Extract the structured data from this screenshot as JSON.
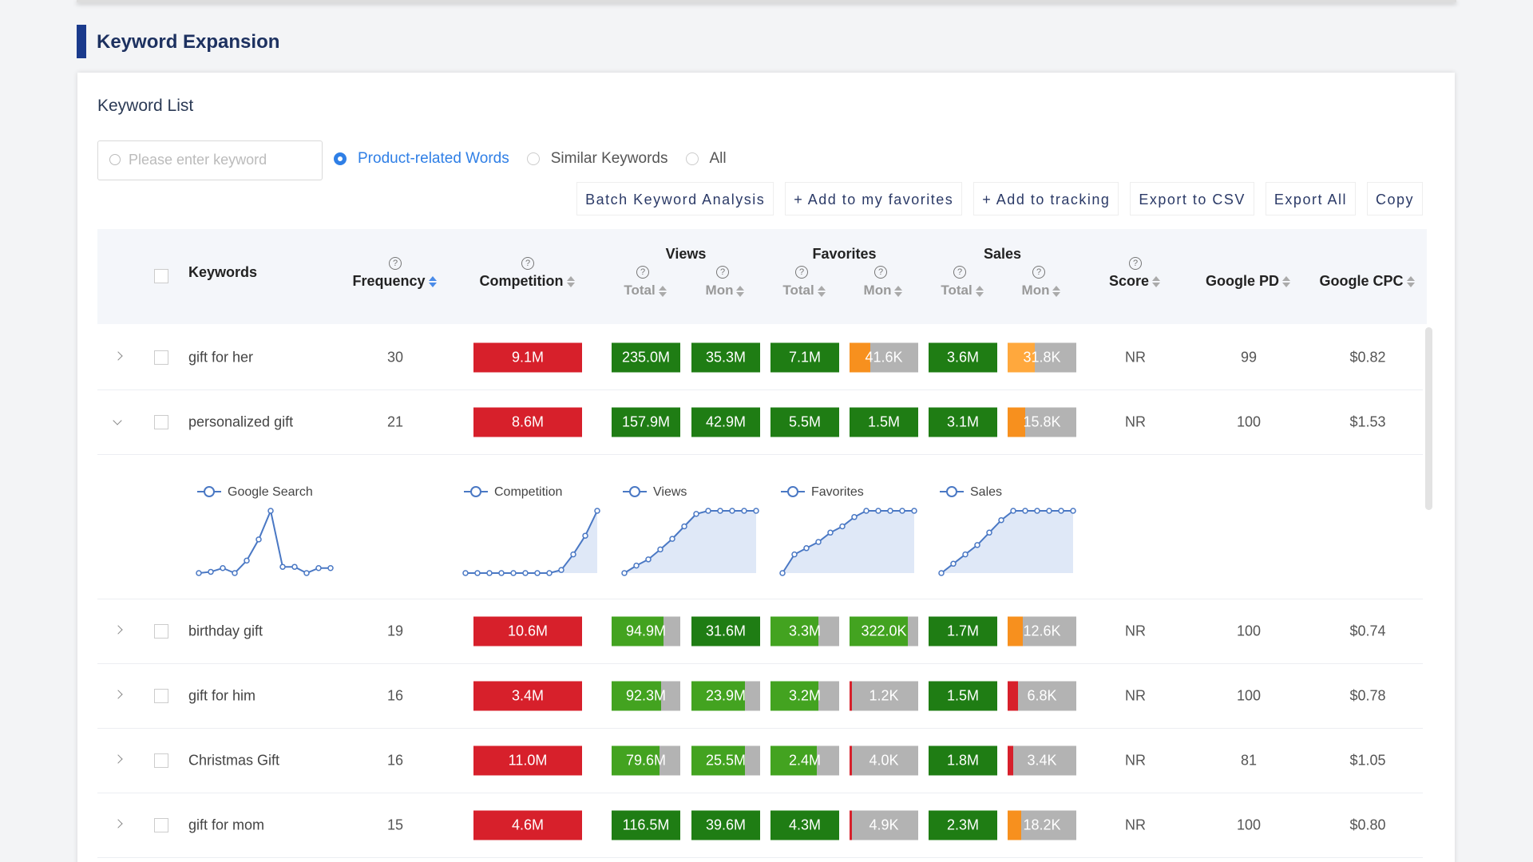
{
  "page_title": "Keyword Expansion",
  "card_title": "Keyword List",
  "search_placeholder": "Please enter keyword",
  "radios": [
    {
      "label": "Product-related Words",
      "selected": true
    },
    {
      "label": "Similar Keywords",
      "selected": false
    },
    {
      "label": "All",
      "selected": false
    }
  ],
  "buttons": [
    "Batch Keyword Analysis",
    "+ Add to my favorites",
    "+ Add to tracking",
    "Export to CSV",
    "Export All",
    "Copy"
  ],
  "headers": {
    "keywords": "Keywords",
    "frequency": "Frequency",
    "competition": "Competition",
    "groups": [
      "Views",
      "Favorites",
      "Sales"
    ],
    "sub": [
      "Total",
      "Mon",
      "Total",
      "Mon",
      "Total",
      "Mon"
    ],
    "score": "Score",
    "pd": "Google PD",
    "cpc": "Google CPC"
  },
  "rows": [
    {
      "keyword": "gift for her",
      "frequency": "30",
      "badges": [
        {
          "text": "9.1M",
          "color": "#d7202b",
          "fill": 100
        },
        {
          "text": "235.0M",
          "color": "#1f7d14",
          "fill": 100
        },
        {
          "text": "35.3M",
          "color": "#1f7d14",
          "fill": 100
        },
        {
          "text": "7.1M",
          "color": "#1f7d14",
          "fill": 100
        },
        {
          "text": "41.6K",
          "color": "#f7901e",
          "fill": 30
        },
        {
          "text": "3.6M",
          "color": "#1f7d14",
          "fill": 100
        },
        {
          "text": "31.8K",
          "color": "#ffa83d",
          "fill": 40
        }
      ],
      "score": "NR",
      "pd": "99",
      "cpc": "$0.82",
      "expanded": false
    },
    {
      "keyword": "personalized gift",
      "frequency": "21",
      "badges": [
        {
          "text": "8.6M",
          "color": "#d7202b",
          "fill": 100
        },
        {
          "text": "157.9M",
          "color": "#1f7d14",
          "fill": 100
        },
        {
          "text": "42.9M",
          "color": "#1f7d14",
          "fill": 100
        },
        {
          "text": "5.5M",
          "color": "#1f7d14",
          "fill": 100
        },
        {
          "text": "1.5M",
          "color": "#1f7d14",
          "fill": 100
        },
        {
          "text": "3.1M",
          "color": "#1f7d14",
          "fill": 100
        },
        {
          "text": "15.8K",
          "color": "#f7901e",
          "fill": 25
        }
      ],
      "score": "NR",
      "pd": "100",
      "cpc": "$1.53",
      "expanded": true
    },
    {
      "keyword": "birthday gift",
      "frequency": "19",
      "badges": [
        {
          "text": "10.6M",
          "color": "#d7202b",
          "fill": 100
        },
        {
          "text": "94.9M",
          "color": "#43a320",
          "fill": 75
        },
        {
          "text": "31.6M",
          "color": "#1f7d14",
          "fill": 100
        },
        {
          "text": "3.3M",
          "color": "#43a320",
          "fill": 70
        },
        {
          "text": "322.0K",
          "color": "#43a320",
          "fill": 85
        },
        {
          "text": "1.7M",
          "color": "#1f7d14",
          "fill": 100
        },
        {
          "text": "12.6K",
          "color": "#f7901e",
          "fill": 22
        }
      ],
      "score": "NR",
      "pd": "100",
      "cpc": "$0.74",
      "expanded": false
    },
    {
      "keyword": "gift for him",
      "frequency": "16",
      "badges": [
        {
          "text": "3.4M",
          "color": "#d7202b",
          "fill": 100
        },
        {
          "text": "92.3M",
          "color": "#43a320",
          "fill": 72
        },
        {
          "text": "23.9M",
          "color": "#43a320",
          "fill": 78
        },
        {
          "text": "3.2M",
          "color": "#43a320",
          "fill": 70
        },
        {
          "text": "1.2K",
          "color": "#d7202b",
          "fill": 4
        },
        {
          "text": "1.5M",
          "color": "#1f7d14",
          "fill": 100
        },
        {
          "text": "6.8K",
          "color": "#d7202b",
          "fill": 15
        }
      ],
      "score": "NR",
      "pd": "100",
      "cpc": "$0.78",
      "expanded": false
    },
    {
      "keyword": "Christmas Gift",
      "frequency": "16",
      "badges": [
        {
          "text": "11.0M",
          "color": "#d7202b",
          "fill": 100
        },
        {
          "text": "79.6M",
          "color": "#43a320",
          "fill": 70
        },
        {
          "text": "25.5M",
          "color": "#43a320",
          "fill": 78
        },
        {
          "text": "2.4M",
          "color": "#43a320",
          "fill": 68
        },
        {
          "text": "4.0K",
          "color": "#d7202b",
          "fill": 4
        },
        {
          "text": "1.8M",
          "color": "#1f7d14",
          "fill": 100
        },
        {
          "text": "3.4K",
          "color": "#d7202b",
          "fill": 8
        }
      ],
      "score": "NR",
      "pd": "81",
      "cpc": "$1.05",
      "expanded": false
    },
    {
      "keyword": "gift for mom",
      "frequency": "15",
      "badges": [
        {
          "text": "4.6M",
          "color": "#d7202b",
          "fill": 100
        },
        {
          "text": "116.5M",
          "color": "#1f7d14",
          "fill": 100
        },
        {
          "text": "39.6M",
          "color": "#1f7d14",
          "fill": 100
        },
        {
          "text": "4.3M",
          "color": "#1f7d14",
          "fill": 100
        },
        {
          "text": "4.9K",
          "color": "#d7202b",
          "fill": 4
        },
        {
          "text": "2.3M",
          "color": "#1f7d14",
          "fill": 100
        },
        {
          "text": "18.2K",
          "color": "#f7901e",
          "fill": 20
        }
      ],
      "score": "NR",
      "pd": "100",
      "cpc": "$0.80",
      "expanded": false
    }
  ],
  "chart_data": [
    {
      "type": "line",
      "name": "Google Search",
      "area": false,
      "color": "#4a78c4",
      "ylim": [
        0,
        100
      ],
      "values": [
        0,
        2,
        8,
        0,
        20,
        54,
        100,
        10,
        10,
        0,
        8,
        8
      ]
    },
    {
      "type": "line",
      "name": "Competition",
      "area": true,
      "color": "#4a78c4",
      "ylim": [
        0,
        100
      ],
      "values": [
        0,
        0,
        0,
        0,
        0,
        0,
        0,
        0,
        5,
        30,
        60,
        100
      ]
    },
    {
      "type": "line",
      "name": "Views",
      "area": true,
      "color": "#4a78c4",
      "ylim": [
        0,
        100
      ],
      "values": [
        0,
        12,
        22,
        38,
        55,
        75,
        95,
        100,
        100,
        100,
        100,
        100
      ]
    },
    {
      "type": "line",
      "name": "Favorites",
      "area": true,
      "color": "#4a78c4",
      "ylim": [
        0,
        100
      ],
      "values": [
        0,
        30,
        40,
        50,
        65,
        75,
        90,
        100,
        100,
        100,
        100,
        100
      ]
    },
    {
      "type": "line",
      "name": "Sales",
      "area": true,
      "color": "#4a78c4",
      "ylim": [
        0,
        100
      ],
      "values": [
        0,
        15,
        30,
        45,
        65,
        85,
        100,
        100,
        100,
        100,
        100,
        100
      ]
    }
  ]
}
